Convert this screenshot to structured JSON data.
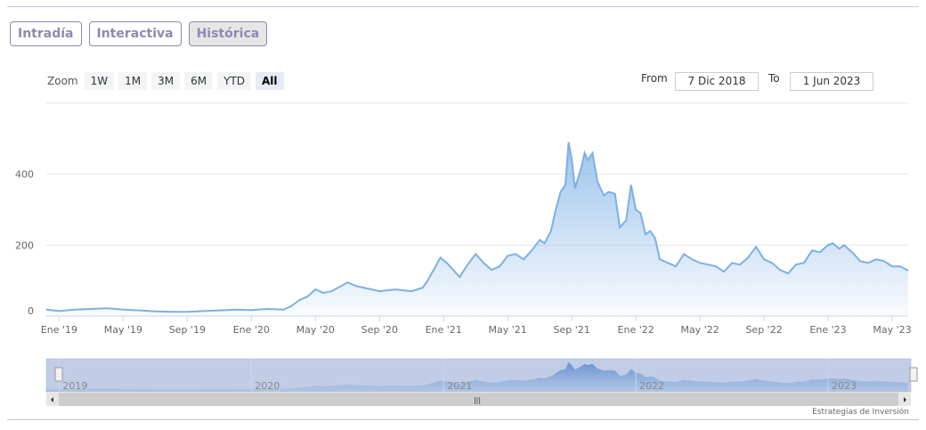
{
  "tabs": [
    "Intradía",
    "Interactiva",
    "Histórica"
  ],
  "zoom": {
    "label": "Zoom",
    "buttons": [
      "1W",
      "1M",
      "3M",
      "6M",
      "YTD",
      "All"
    ],
    "selected": "All"
  },
  "range": {
    "from_label": "From",
    "from": "7 Dic 2018",
    "to_label": "To",
    "to": "1 Jun 2023"
  },
  "credit": "Estrategias de Inversión",
  "colors": {
    "line": "#7cb0e4",
    "accent": "#9088b3"
  },
  "chart_data": {
    "type": "area",
    "x_unit": "months since Jan 2019",
    "xlim": [
      -0.8,
      53
    ],
    "ylim": [
      0,
      600
    ],
    "y_ticks": [
      0,
      200,
      400
    ],
    "x_ticks": [
      {
        "v": 0,
        "label": "Ene '19"
      },
      {
        "v": 4,
        "label": "May '19"
      },
      {
        "v": 8,
        "label": "Sep '19"
      },
      {
        "v": 12,
        "label": "Ene '20"
      },
      {
        "v": 16,
        "label": "May '20"
      },
      {
        "v": 20,
        "label": "Sep '20"
      },
      {
        "v": 24,
        "label": "Ene '21"
      },
      {
        "v": 28,
        "label": "May '21"
      },
      {
        "v": 32,
        "label": "Sep '21"
      },
      {
        "v": 36,
        "label": "Ene '22"
      },
      {
        "v": 40,
        "label": "May '22"
      },
      {
        "v": 44,
        "label": "Sep '22"
      },
      {
        "v": 48,
        "label": "Ene '23"
      },
      {
        "v": 52,
        "label": "May '23"
      }
    ],
    "navigator_labels": [
      {
        "v": 0,
        "label": "2019"
      },
      {
        "v": 12,
        "label": "2020"
      },
      {
        "v": 24,
        "label": "2021"
      },
      {
        "v": 36,
        "label": "2022"
      },
      {
        "v": 48,
        "label": "2023"
      }
    ],
    "points": [
      [
        -0.8,
        18
      ],
      [
        0,
        14
      ],
      [
        1,
        18
      ],
      [
        2,
        20
      ],
      [
        3,
        22
      ],
      [
        4,
        18
      ],
      [
        5,
        16
      ],
      [
        6,
        13
      ],
      [
        7,
        12
      ],
      [
        8,
        12
      ],
      [
        9,
        14
      ],
      [
        10,
        16
      ],
      [
        11,
        18
      ],
      [
        12,
        17
      ],
      [
        13,
        20
      ],
      [
        14,
        18
      ],
      [
        14.5,
        28
      ],
      [
        15,
        45
      ],
      [
        15.5,
        55
      ],
      [
        16,
        75
      ],
      [
        16.5,
        65
      ],
      [
        17,
        70
      ],
      [
        17.5,
        82
      ],
      [
        18,
        95
      ],
      [
        18.5,
        85
      ],
      [
        19,
        80
      ],
      [
        20,
        70
      ],
      [
        21,
        75
      ],
      [
        22,
        70
      ],
      [
        22.7,
        80
      ],
      [
        23,
        100
      ],
      [
        23.5,
        140
      ],
      [
        23.8,
        165
      ],
      [
        24.2,
        150
      ],
      [
        24.6,
        130
      ],
      [
        25,
        110
      ],
      [
        25.5,
        145
      ],
      [
        26,
        175
      ],
      [
        26.5,
        150
      ],
      [
        27,
        130
      ],
      [
        27.5,
        140
      ],
      [
        28,
        170
      ],
      [
        28.5,
        175
      ],
      [
        29,
        160
      ],
      [
        29.5,
        185
      ],
      [
        30,
        215
      ],
      [
        30.3,
        205
      ],
      [
        30.7,
        240
      ],
      [
        31,
        300
      ],
      [
        31.3,
        350
      ],
      [
        31.6,
        370
      ],
      [
        31.8,
        490
      ],
      [
        32,
        440
      ],
      [
        32.2,
        360
      ],
      [
        32.6,
        420
      ],
      [
        32.8,
        460
      ],
      [
        33,
        440
      ],
      [
        33.3,
        460
      ],
      [
        33.6,
        380
      ],
      [
        34,
        340
      ],
      [
        34.3,
        350
      ],
      [
        34.7,
        345
      ],
      [
        35,
        250
      ],
      [
        35.4,
        270
      ],
      [
        35.7,
        370
      ],
      [
        36,
        300
      ],
      [
        36.3,
        290
      ],
      [
        36.6,
        230
      ],
      [
        36.9,
        240
      ],
      [
        37.2,
        220
      ],
      [
        37.5,
        160
      ],
      [
        38,
        150
      ],
      [
        38.5,
        140
      ],
      [
        39,
        175
      ],
      [
        39.5,
        160
      ],
      [
        40,
        150
      ],
      [
        40.5,
        145
      ],
      [
        41,
        140
      ],
      [
        41.5,
        125
      ],
      [
        42,
        150
      ],
      [
        42.5,
        145
      ],
      [
        43,
        165
      ],
      [
        43.5,
        195
      ],
      [
        44,
        160
      ],
      [
        44.5,
        150
      ],
      [
        45,
        130
      ],
      [
        45.5,
        120
      ],
      [
        46,
        145
      ],
      [
        46.5,
        150
      ],
      [
        47,
        185
      ],
      [
        47.5,
        180
      ],
      [
        48,
        200
      ],
      [
        48.3,
        205
      ],
      [
        48.7,
        190
      ],
      [
        49,
        200
      ],
      [
        49.5,
        180
      ],
      [
        50,
        155
      ],
      [
        50.5,
        150
      ],
      [
        51,
        160
      ],
      [
        51.5,
        155
      ],
      [
        52,
        140
      ],
      [
        52.5,
        140
      ],
      [
        53,
        128
      ]
    ]
  }
}
